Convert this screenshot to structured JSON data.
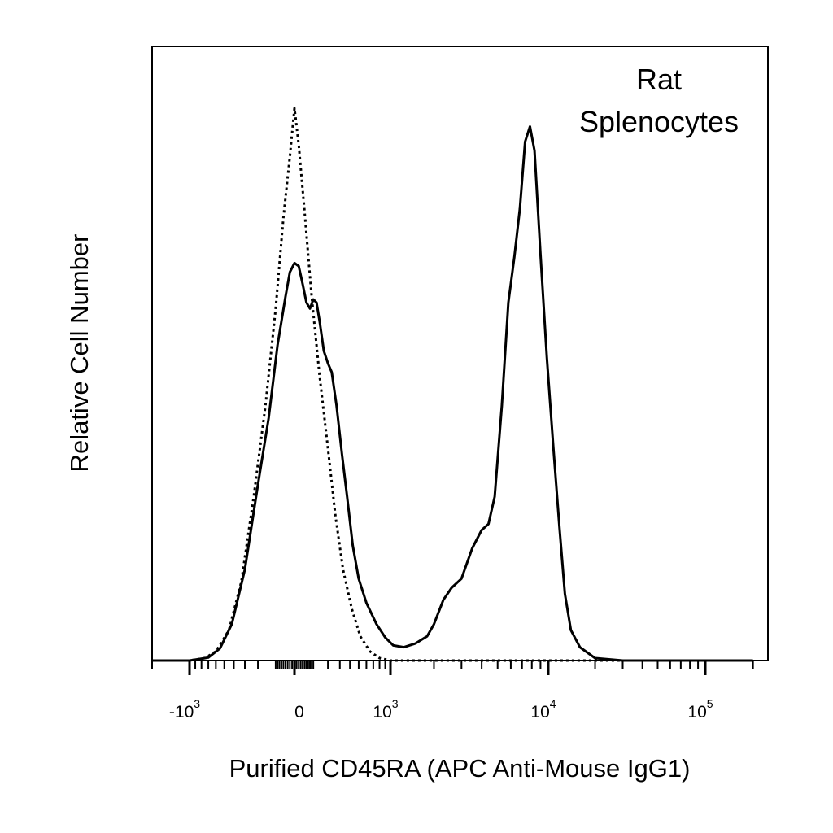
{
  "chart_data": {
    "type": "line",
    "title": "",
    "xlabel": "Purified CD45RA (APC Anti-Mouse IgG1)",
    "ylabel": "Relative Cell Number",
    "x_scale": "biexponential",
    "x_range": [
      -2000,
      200000
    ],
    "y_range": [
      0,
      100
    ],
    "grid": false,
    "annotation": [
      "Rat",
      "Splenocytes"
    ],
    "x_ticks": [
      {
        "value": -1000,
        "base": "-10",
        "exp": "3"
      },
      {
        "value": 0,
        "base": "0",
        "exp": ""
      },
      {
        "value": 1000,
        "base": "10",
        "exp": "3"
      },
      {
        "value": 10000,
        "base": "10",
        "exp": "4"
      },
      {
        "value": 100000,
        "base": "10",
        "exp": "5"
      }
    ],
    "series": [
      {
        "style": "solid",
        "color": "#000000",
        "points": [
          [
            -2000,
            0
          ],
          [
            -1000,
            0
          ],
          [
            -700,
            0.5
          ],
          [
            -550,
            2
          ],
          [
            -420,
            6
          ],
          [
            -300,
            15
          ],
          [
            -200,
            29
          ],
          [
            -130,
            40
          ],
          [
            -80,
            52
          ],
          [
            -40,
            60
          ],
          [
            -20,
            64
          ],
          [
            0,
            65.5
          ],
          [
            20,
            65
          ],
          [
            40,
            62
          ],
          [
            60,
            59
          ],
          [
            80,
            58
          ],
          [
            100,
            59.5
          ],
          [
            120,
            59
          ],
          [
            140,
            56
          ],
          [
            170,
            51
          ],
          [
            200,
            49
          ],
          [
            230,
            47.5
          ],
          [
            270,
            42
          ],
          [
            320,
            34
          ],
          [
            370,
            27
          ],
          [
            430,
            19
          ],
          [
            500,
            13.5
          ],
          [
            600,
            9.5
          ],
          [
            750,
            6
          ],
          [
            900,
            3.8
          ],
          [
            1050,
            2.5
          ],
          [
            1250,
            2.2
          ],
          [
            1500,
            2.8
          ],
          [
            1800,
            4
          ],
          [
            2000,
            6
          ],
          [
            2300,
            10
          ],
          [
            2600,
            12
          ],
          [
            3000,
            13.5
          ],
          [
            3500,
            18.5
          ],
          [
            4000,
            21.5
          ],
          [
            4400,
            22.5
          ],
          [
            4800,
            27
          ],
          [
            5300,
            42
          ],
          [
            5800,
            59
          ],
          [
            6300,
            66.5
          ],
          [
            6800,
            74.5
          ],
          [
            7300,
            85.5
          ],
          [
            7800,
            88
          ],
          [
            8300,
            84
          ],
          [
            9000,
            67
          ],
          [
            9800,
            50
          ],
          [
            10800,
            35
          ],
          [
            11800,
            22
          ],
          [
            12800,
            11
          ],
          [
            14000,
            5
          ],
          [
            16000,
            2.2
          ],
          [
            20000,
            0.4
          ],
          [
            30000,
            0
          ],
          [
            200000,
            0
          ]
        ]
      },
      {
        "style": "dotted",
        "color": "#000000",
        "points": [
          [
            -2000,
            0
          ],
          [
            -1000,
            0
          ],
          [
            -750,
            0.4
          ],
          [
            -600,
            1.5
          ],
          [
            -450,
            5
          ],
          [
            -330,
            13
          ],
          [
            -230,
            27
          ],
          [
            -150,
            42
          ],
          [
            -90,
            58
          ],
          [
            -50,
            73
          ],
          [
            -20,
            83
          ],
          [
            0,
            91
          ],
          [
            20,
            85
          ],
          [
            50,
            74
          ],
          [
            90,
            60
          ],
          [
            140,
            47
          ],
          [
            200,
            35
          ],
          [
            260,
            24
          ],
          [
            330,
            15
          ],
          [
            420,
            8.5
          ],
          [
            520,
            4
          ],
          [
            650,
            1.5
          ],
          [
            800,
            0.4
          ],
          [
            1000,
            0
          ],
          [
            200000,
            0
          ]
        ]
      }
    ]
  }
}
